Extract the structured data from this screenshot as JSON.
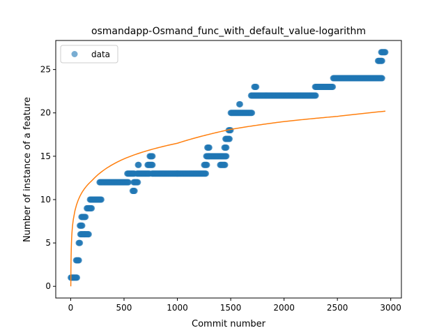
{
  "chart_data": {
    "type": "scatter",
    "title": "osmandapp-Osmand_func_with_default_value-logarithm",
    "xlabel": "Commit number",
    "ylabel": "Number of instance of a feature",
    "xlim": [
      -140,
      3100
    ],
    "ylim": [
      -1.35,
      28.35
    ],
    "xticks": [
      0,
      500,
      1000,
      1500,
      2000,
      2500,
      3000
    ],
    "yticks": [
      0,
      5,
      10,
      15,
      20,
      25
    ],
    "legend": {
      "position": "top-left",
      "entries": [
        "data"
      ]
    },
    "colors": {
      "data": "#1f77b4",
      "fit": "#ff7f0e"
    },
    "series": [
      {
        "name": "data",
        "type": "scatter",
        "segments": [
          {
            "x0": 0,
            "x1": 60,
            "y": 1
          },
          {
            "x0": 50,
            "x1": 80,
            "y": 3
          },
          {
            "x0": 75,
            "x1": 90,
            "y": 5
          },
          {
            "x0": 85,
            "x1": 110,
            "y": 7
          },
          {
            "x0": 90,
            "x1": 130,
            "y": 6
          },
          {
            "x0": 100,
            "x1": 140,
            "y": 8
          },
          {
            "x0": 130,
            "x1": 170,
            "y": 6
          },
          {
            "x0": 150,
            "x1": 200,
            "y": 9
          },
          {
            "x0": 180,
            "x1": 290,
            "y": 10
          },
          {
            "x0": 270,
            "x1": 545,
            "y": 12
          },
          {
            "x0": 530,
            "x1": 600,
            "y": 13
          },
          {
            "x0": 580,
            "x1": 600,
            "y": 11
          },
          {
            "x0": 590,
            "x1": 630,
            "y": 12
          },
          {
            "x0": 620,
            "x1": 740,
            "y": 13
          },
          {
            "x0": 630,
            "x1": 640,
            "y": 14
          },
          {
            "x0": 720,
            "x1": 770,
            "y": 14
          },
          {
            "x0": 740,
            "x1": 770,
            "y": 15
          },
          {
            "x0": 760,
            "x1": 1270,
            "y": 13
          },
          {
            "x0": 1250,
            "x1": 1280,
            "y": 14
          },
          {
            "x0": 1270,
            "x1": 1300,
            "y": 15
          },
          {
            "x0": 1280,
            "x1": 1300,
            "y": 16
          },
          {
            "x0": 1290,
            "x1": 1420,
            "y": 15
          },
          {
            "x0": 1400,
            "x1": 1450,
            "y": 14
          },
          {
            "x0": 1420,
            "x1": 1460,
            "y": 15
          },
          {
            "x0": 1440,
            "x1": 1460,
            "y": 16
          },
          {
            "x0": 1450,
            "x1": 1490,
            "y": 17
          },
          {
            "x0": 1480,
            "x1": 1500,
            "y": 18
          },
          {
            "x0": 1500,
            "x1": 1700,
            "y": 20
          },
          {
            "x0": 1580,
            "x1": 1590,
            "y": 21
          },
          {
            "x0": 1690,
            "x1": 2300,
            "y": 22
          },
          {
            "x0": 1720,
            "x1": 1740,
            "y": 23
          },
          {
            "x0": 2290,
            "x1": 2460,
            "y": 23
          },
          {
            "x0": 2460,
            "x1": 2920,
            "y": 24
          },
          {
            "x0": 2880,
            "x1": 2920,
            "y": 26
          },
          {
            "x0": 2910,
            "x1": 2950,
            "y": 27
          }
        ]
      },
      {
        "name": "",
        "type": "line",
        "function": "logarithm",
        "x_range": [
          0,
          2950
        ],
        "values_sampled": [
          [
            1,
            0.0
          ],
          [
            10,
            5.8
          ],
          [
            50,
            9.2
          ],
          [
            100,
            10.7
          ],
          [
            200,
            12.2
          ],
          [
            500,
            14.7
          ],
          [
            1000,
            16.5
          ],
          [
            1500,
            18.1
          ],
          [
            2000,
            19.0
          ],
          [
            2500,
            19.6
          ],
          [
            2950,
            20.2
          ]
        ]
      }
    ]
  }
}
